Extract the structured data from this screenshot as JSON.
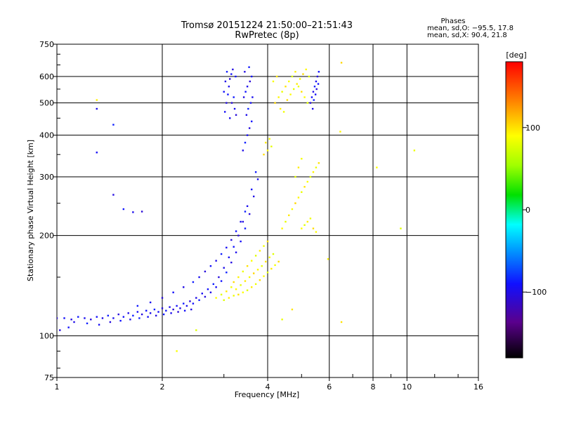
{
  "chart_data": {
    "type": "scatter",
    "title": "Tromsø 20151224 21:50:00–21:51:43",
    "subtitle": "RwPretec (8p)",
    "xlabel": "Frequency [MHz]",
    "ylabel": "Stationary phase Virtual Height [km]",
    "x_scale": "log",
    "y_scale": "log",
    "xlim": [
      1,
      16
    ],
    "ylim": [
      75,
      750
    ],
    "x_ticks": [
      1,
      2,
      4,
      6,
      8,
      10,
      16
    ],
    "x_tick_labels": [
      "1",
      "2",
      "4",
      "6",
      "8",
      "10",
      "16"
    ],
    "y_ticks": [
      75,
      100,
      200,
      300,
      400,
      500,
      600,
      750
    ],
    "y_tick_labels": [
      "75",
      "100",
      "200",
      "300",
      "400",
      "500",
      "600",
      "750"
    ],
    "grid": true,
    "phases_legend": {
      "title": "Phases",
      "line_o": "mean, sd,O: −95.5, 17.8",
      "line_x": "mean, sd,X:  90.4, 21.8"
    },
    "colorbar": {
      "label": "[deg]",
      "range": [
        -180,
        180
      ],
      "ticks": [
        100,
        0,
        -100
      ],
      "tick_labels": [
        "100",
        "0",
        "−100"
      ]
    },
    "series": [
      {
        "name": "O",
        "phase_mean": -95.5,
        "phase_sd": 17.8,
        "points": [
          [
            1.0,
            113
          ],
          [
            1.05,
            113
          ],
          [
            1.1,
            112
          ],
          [
            1.15,
            114
          ],
          [
            1.2,
            113
          ],
          [
            1.25,
            112
          ],
          [
            1.3,
            114
          ],
          [
            1.35,
            113
          ],
          [
            1.4,
            115
          ],
          [
            1.45,
            113
          ],
          [
            1.5,
            116
          ],
          [
            1.55,
            114
          ],
          [
            1.6,
            117
          ],
          [
            1.65,
            115
          ],
          [
            1.7,
            118
          ],
          [
            1.75,
            116
          ],
          [
            1.8,
            119
          ],
          [
            1.85,
            117
          ],
          [
            1.9,
            120
          ],
          [
            1.95,
            118
          ],
          [
            2.0,
            121
          ],
          [
            2.05,
            119
          ],
          [
            2.1,
            122
          ],
          [
            2.15,
            120
          ],
          [
            2.2,
            123
          ],
          [
            2.25,
            121
          ],
          [
            2.3,
            125
          ],
          [
            2.35,
            123
          ],
          [
            2.4,
            127
          ],
          [
            2.45,
            125
          ],
          [
            2.5,
            130
          ],
          [
            2.55,
            128
          ],
          [
            2.6,
            134
          ],
          [
            2.65,
            131
          ],
          [
            2.7,
            138
          ],
          [
            2.75,
            135
          ],
          [
            2.8,
            143
          ],
          [
            2.85,
            140
          ],
          [
            2.9,
            150
          ],
          [
            2.95,
            146
          ],
          [
            3.0,
            160
          ],
          [
            3.05,
            155
          ],
          [
            3.1,
            172
          ],
          [
            3.15,
            166
          ],
          [
            3.2,
            185
          ],
          [
            3.25,
            178
          ],
          [
            3.3,
            200
          ],
          [
            3.35,
            192
          ],
          [
            3.4,
            220
          ],
          [
            3.45,
            210
          ],
          [
            3.5,
            245
          ],
          [
            3.55,
            232
          ],
          [
            3.6,
            275
          ],
          [
            3.65,
            262
          ],
          [
            3.7,
            310
          ],
          [
            3.75,
            295
          ],
          [
            1.02,
            104
          ],
          [
            1.08,
            106
          ],
          [
            1.12,
            110
          ],
          [
            1.22,
            109
          ],
          [
            1.32,
            108
          ],
          [
            1.42,
            110
          ],
          [
            1.52,
            111
          ],
          [
            1.62,
            112
          ],
          [
            1.72,
            113
          ],
          [
            1.82,
            114
          ],
          [
            1.92,
            115
          ],
          [
            2.02,
            116
          ],
          [
            2.12,
            117
          ],
          [
            2.22,
            118
          ],
          [
            2.32,
            119
          ],
          [
            2.42,
            120
          ],
          [
            1.7,
            123
          ],
          [
            1.85,
            126
          ],
          [
            2.0,
            130
          ],
          [
            2.15,
            135
          ],
          [
            2.3,
            140
          ],
          [
            2.45,
            145
          ],
          [
            2.55,
            150
          ],
          [
            2.65,
            156
          ],
          [
            2.75,
            162
          ],
          [
            2.85,
            168
          ],
          [
            2.95,
            176
          ],
          [
            3.05,
            184
          ],
          [
            3.15,
            194
          ],
          [
            3.25,
            206
          ],
          [
            3.35,
            220
          ],
          [
            3.45,
            236
          ],
          [
            3.02,
            470
          ],
          [
            3.05,
            500
          ],
          [
            3.08,
            530
          ],
          [
            3.1,
            560
          ],
          [
            3.12,
            590
          ],
          [
            3.15,
            610
          ],
          [
            3.18,
            630
          ],
          [
            3.2,
            520
          ],
          [
            3.22,
            480
          ],
          [
            3.25,
            460
          ],
          [
            3.0,
            540
          ],
          [
            3.03,
            580
          ],
          [
            3.06,
            620
          ],
          [
            3.12,
            450
          ],
          [
            3.16,
            500
          ],
          [
            3.24,
            600
          ],
          [
            3.4,
            360
          ],
          [
            3.45,
            380
          ],
          [
            3.5,
            400
          ],
          [
            3.55,
            420
          ],
          [
            3.6,
            440
          ],
          [
            3.48,
            460
          ],
          [
            3.52,
            480
          ],
          [
            3.58,
            500
          ],
          [
            3.42,
            520
          ],
          [
            3.46,
            540
          ],
          [
            3.5,
            560
          ],
          [
            3.56,
            580
          ],
          [
            3.6,
            600
          ],
          [
            3.44,
            620
          ],
          [
            3.54,
            640
          ],
          [
            3.62,
            520
          ],
          [
            5.3,
            500
          ],
          [
            5.35,
            520
          ],
          [
            5.4,
            540
          ],
          [
            5.45,
            560
          ],
          [
            5.5,
            580
          ],
          [
            5.55,
            600
          ],
          [
            5.6,
            620
          ],
          [
            5.38,
            480
          ],
          [
            5.42,
            510
          ],
          [
            5.48,
            530
          ],
          [
            5.52,
            550
          ],
          [
            5.58,
            570
          ],
          [
            1.3,
            480
          ],
          [
            1.45,
            430
          ],
          [
            1.3,
            355
          ],
          [
            1.45,
            265
          ],
          [
            1.55,
            240
          ],
          [
            1.65,
            235
          ],
          [
            1.75,
            236
          ]
        ]
      },
      {
        "name": "X",
        "phase_mean": 90.4,
        "phase_sd": 21.8,
        "points": [
          [
            3.0,
            128
          ],
          [
            3.1,
            130
          ],
          [
            3.2,
            132
          ],
          [
            3.3,
            133
          ],
          [
            3.4,
            135
          ],
          [
            3.5,
            137
          ],
          [
            3.6,
            140
          ],
          [
            3.7,
            143
          ],
          [
            3.8,
            147
          ],
          [
            3.9,
            151
          ],
          [
            4.0,
            155
          ],
          [
            4.1,
            159
          ],
          [
            4.2,
            163
          ],
          [
            4.3,
            167
          ],
          [
            3.25,
            138
          ],
          [
            3.35,
            142
          ],
          [
            3.45,
            146
          ],
          [
            3.55,
            150
          ],
          [
            3.65,
            154
          ],
          [
            3.75,
            158
          ],
          [
            3.85,
            162
          ],
          [
            3.95,
            167
          ],
          [
            4.05,
            172
          ],
          [
            4.15,
            176
          ],
          [
            3.3,
            150
          ],
          [
            3.4,
            156
          ],
          [
            3.5,
            162
          ],
          [
            3.6,
            168
          ],
          [
            3.7,
            174
          ],
          [
            3.8,
            180
          ],
          [
            3.9,
            186
          ],
          [
            4.0,
            192
          ],
          [
            2.85,
            130
          ],
          [
            2.95,
            133
          ],
          [
            3.05,
            136
          ],
          [
            3.15,
            140
          ],
          [
            3.2,
            145
          ],
          [
            4.4,
            210
          ],
          [
            4.5,
            220
          ],
          [
            4.6,
            230
          ],
          [
            4.7,
            240
          ],
          [
            4.8,
            250
          ],
          [
            4.9,
            260
          ],
          [
            5.0,
            270
          ],
          [
            5.1,
            280
          ],
          [
            5.2,
            290
          ],
          [
            5.3,
            300
          ],
          [
            5.4,
            310
          ],
          [
            5.5,
            320
          ],
          [
            5.6,
            330
          ],
          [
            5.0,
            210
          ],
          [
            5.1,
            215
          ],
          [
            5.2,
            220
          ],
          [
            5.3,
            225
          ],
          [
            5.4,
            210
          ],
          [
            5.5,
            205
          ],
          [
            4.8,
            300
          ],
          [
            4.9,
            320
          ],
          [
            5.0,
            340
          ],
          [
            3.9,
            350
          ],
          [
            4.0,
            360
          ],
          [
            4.1,
            370
          ],
          [
            3.95,
            380
          ],
          [
            4.05,
            390
          ],
          [
            4.2,
            500
          ],
          [
            4.3,
            520
          ],
          [
            4.4,
            540
          ],
          [
            4.5,
            560
          ],
          [
            4.6,
            580
          ],
          [
            4.7,
            600
          ],
          [
            4.8,
            620
          ],
          [
            4.9,
            560
          ],
          [
            5.0,
            540
          ],
          [
            5.1,
            520
          ],
          [
            5.2,
            500
          ],
          [
            4.35,
            480
          ],
          [
            4.45,
            470
          ],
          [
            4.55,
            510
          ],
          [
            4.65,
            530
          ],
          [
            4.75,
            550
          ],
          [
            4.85,
            570
          ],
          [
            4.95,
            590
          ],
          [
            5.05,
            610
          ],
          [
            5.15,
            630
          ],
          [
            5.25,
            600
          ],
          [
            4.25,
            600
          ],
          [
            4.15,
            580
          ],
          [
            6.5,
            660
          ],
          [
            6.45,
            410
          ],
          [
            4.4,
            112
          ],
          [
            4.7,
            120
          ],
          [
            2.2,
            90
          ],
          [
            2.5,
            104
          ],
          [
            5.95,
            170
          ],
          [
            10.5,
            360
          ],
          [
            6.5,
            110
          ],
          [
            8.2,
            320
          ],
          [
            9.6,
            210
          ],
          [
            1.3,
            510
          ]
        ]
      }
    ]
  }
}
